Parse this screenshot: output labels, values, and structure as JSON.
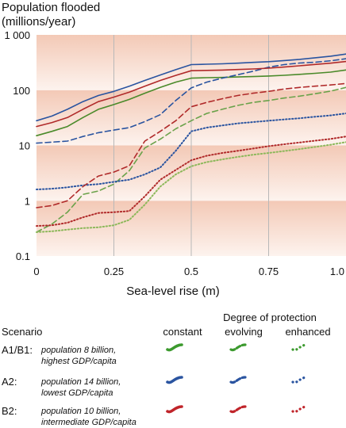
{
  "chart_data": {
    "type": "line",
    "title_lines": [
      "Population flooded",
      "(millions/year)"
    ],
    "xlabel": "Sea-level rise (m)",
    "ylabel": "",
    "y_scale": "log",
    "ylim": [
      0.1,
      1000
    ],
    "xlim": [
      0,
      1.0
    ],
    "x_ticks": [
      0,
      0.25,
      0.5,
      0.75,
      1.0
    ],
    "x_tick_labels": [
      "0",
      "0.25",
      "0.5",
      "0.75",
      "1.0"
    ],
    "y_ticks": [
      0.1,
      1,
      10,
      100,
      1000
    ],
    "y_tick_labels": [
      "0.1",
      "1",
      "10",
      "100",
      "1 000"
    ],
    "grid": "vertical",
    "series": [
      {
        "name": "A1/B1 constant",
        "scenario": "A1/B1",
        "protection": "constant",
        "color": "#4a8a2a",
        "style": "solid",
        "x": [
          0,
          0.05,
          0.1,
          0.15,
          0.2,
          0.25,
          0.3,
          0.35,
          0.4,
          0.45,
          0.5,
          0.55,
          0.6,
          0.65,
          0.7,
          0.75,
          0.8,
          0.85,
          0.9,
          0.95,
          1.0
        ],
        "y": [
          15,
          18,
          22,
          32,
          45,
          55,
          68,
          88,
          112,
          140,
          165,
          168,
          170,
          173,
          176,
          180,
          186,
          193,
          202,
          212,
          232
        ]
      },
      {
        "name": "A1/B1 evolving",
        "scenario": "A1/B1",
        "protection": "evolving",
        "color": "#6aa24a",
        "style": "dashed",
        "x": [
          0,
          0.05,
          0.1,
          0.15,
          0.2,
          0.25,
          0.3,
          0.35,
          0.4,
          0.45,
          0.5,
          0.55,
          0.6,
          0.65,
          0.7,
          0.75,
          0.8,
          0.85,
          0.9,
          0.95,
          1.0
        ],
        "y": [
          0.27,
          0.38,
          0.62,
          1.3,
          1.5,
          2.0,
          3.5,
          9,
          13,
          20,
          28,
          38,
          45,
          53,
          60,
          65,
          72,
          78,
          86,
          96,
          112
        ]
      },
      {
        "name": "A1/B1 enhanced",
        "scenario": "A1/B1",
        "protection": "enhanced",
        "color": "#8cb85a",
        "style": "dotted",
        "x": [
          0,
          0.05,
          0.1,
          0.15,
          0.2,
          0.25,
          0.3,
          0.35,
          0.4,
          0.45,
          0.5,
          0.55,
          0.6,
          0.65,
          0.7,
          0.75,
          0.8,
          0.85,
          0.9,
          0.95,
          1.0
        ],
        "y": [
          0.27,
          0.28,
          0.3,
          0.32,
          0.33,
          0.36,
          0.45,
          0.85,
          1.8,
          3.0,
          4.2,
          5.0,
          5.6,
          6.2,
          6.8,
          7.3,
          7.9,
          8.6,
          9.4,
          10.3,
          11.5
        ]
      },
      {
        "name": "A2 constant",
        "scenario": "A2",
        "protection": "constant",
        "color": "#2a54a0",
        "style": "solid",
        "x": [
          0,
          0.05,
          0.1,
          0.15,
          0.2,
          0.25,
          0.3,
          0.35,
          0.4,
          0.45,
          0.5,
          0.55,
          0.6,
          0.65,
          0.7,
          0.75,
          0.8,
          0.85,
          0.9,
          0.95,
          1.0
        ],
        "y": [
          28,
          34,
          45,
          62,
          80,
          95,
          118,
          150,
          188,
          235,
          290,
          295,
          300,
          308,
          318,
          328,
          343,
          360,
          385,
          412,
          450
        ]
      },
      {
        "name": "A2 evolving",
        "scenario": "A2",
        "protection": "evolving",
        "color": "#2a54a0",
        "style": "dashed",
        "x": [
          0,
          0.05,
          0.1,
          0.15,
          0.2,
          0.25,
          0.3,
          0.35,
          0.4,
          0.45,
          0.5,
          0.55,
          0.6,
          0.65,
          0.7,
          0.75,
          0.8,
          0.85,
          0.9,
          0.95,
          1.0
        ],
        "y": [
          11,
          11.5,
          12,
          14.5,
          17,
          19,
          21,
          27,
          36,
          65,
          110,
          140,
          165,
          190,
          220,
          260,
          290,
          310,
          320,
          340,
          370
        ]
      },
      {
        "name": "A2 enhanced",
        "scenario": "A2",
        "protection": "enhanced",
        "color": "#2a54a0",
        "style": "dotted",
        "x": [
          0,
          0.05,
          0.1,
          0.15,
          0.2,
          0.25,
          0.3,
          0.35,
          0.4,
          0.45,
          0.5,
          0.55,
          0.6,
          0.65,
          0.7,
          0.75,
          0.8,
          0.85,
          0.9,
          0.95,
          1.0
        ],
        "y": [
          1.6,
          1.65,
          1.75,
          1.9,
          2.0,
          2.2,
          2.4,
          3.0,
          4.0,
          8.0,
          18,
          21,
          23,
          25,
          26.5,
          28,
          29.5,
          31,
          33,
          35,
          38
        ]
      },
      {
        "name": "B2 constant",
        "scenario": "B2",
        "protection": "constant",
        "color": "#b02a2a",
        "style": "solid",
        "x": [
          0,
          0.05,
          0.1,
          0.15,
          0.2,
          0.25,
          0.3,
          0.35,
          0.4,
          0.45,
          0.5,
          0.55,
          0.6,
          0.65,
          0.7,
          0.75,
          0.8,
          0.85,
          0.9,
          0.95,
          1.0
        ],
        "y": [
          22,
          26,
          32,
          45,
          62,
          75,
          92,
          118,
          150,
          185,
          225,
          228,
          231,
          236,
          242,
          250,
          262,
          276,
          292,
          308,
          330
        ]
      },
      {
        "name": "B2 evolving",
        "scenario": "B2",
        "protection": "evolving",
        "color": "#b02a2a",
        "style": "dashed",
        "x": [
          0,
          0.05,
          0.1,
          0.15,
          0.2,
          0.25,
          0.3,
          0.35,
          0.4,
          0.45,
          0.5,
          0.55,
          0.6,
          0.65,
          0.7,
          0.75,
          0.8,
          0.85,
          0.9,
          0.95,
          1.0
        ],
        "y": [
          0.75,
          0.82,
          1.0,
          1.8,
          2.8,
          3.3,
          4.3,
          12,
          18,
          28,
          50,
          60,
          70,
          80,
          88,
          95,
          105,
          112,
          118,
          124,
          132
        ]
      },
      {
        "name": "B2 enhanced",
        "scenario": "B2",
        "protection": "enhanced",
        "color": "#b02a2a",
        "style": "dotted",
        "x": [
          0,
          0.05,
          0.1,
          0.15,
          0.2,
          0.25,
          0.3,
          0.35,
          0.4,
          0.45,
          0.5,
          0.55,
          0.6,
          0.65,
          0.7,
          0.75,
          0.8,
          0.85,
          0.9,
          0.95,
          1.0
        ],
        "y": [
          0.35,
          0.36,
          0.4,
          0.5,
          0.6,
          0.62,
          0.65,
          1.2,
          2.4,
          3.6,
          5.4,
          6.5,
          7.3,
          8.0,
          8.8,
          9.7,
          10.5,
          11.3,
          12.2,
          13.1,
          14.5
        ]
      }
    ]
  },
  "legend": {
    "title": "Degree of protection",
    "scenario_header": "Scenario",
    "columns": [
      "constant",
      "evolving",
      "enhanced"
    ],
    "rows": [
      {
        "name": "A1/B1:",
        "desc1": "population 8 billion,",
        "desc2": "highest GDP/capita",
        "color": "#3c9a2e"
      },
      {
        "name": "A2:",
        "desc1": "population 14 billion,",
        "desc2": "lowest GDP/capita",
        "color": "#2a54a0"
      },
      {
        "name": "B2:",
        "desc1": "population 10 billion,",
        "desc2": "intermediate GDP/capita",
        "color": "#c0242a"
      }
    ]
  }
}
